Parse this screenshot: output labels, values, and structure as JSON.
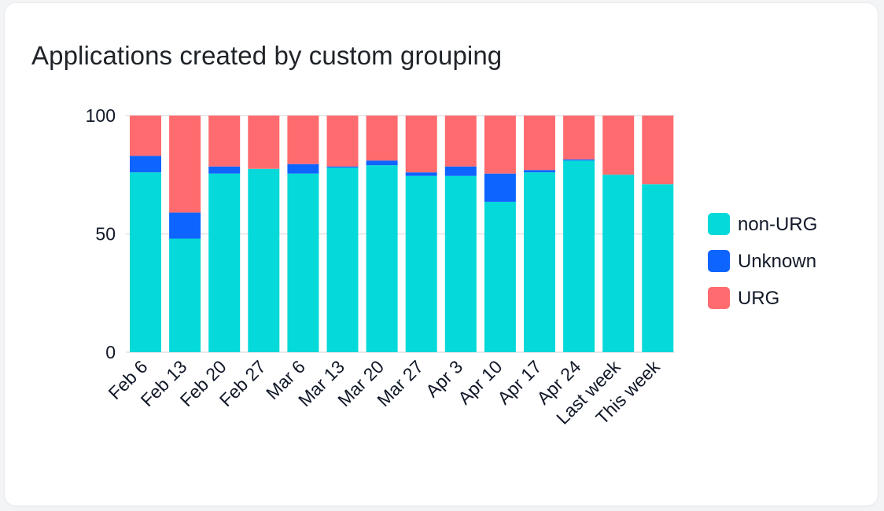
{
  "card": {
    "title": "Applications created by custom grouping"
  },
  "chart_data": {
    "type": "bar",
    "stacked": true,
    "title": "Applications created by custom grouping",
    "xlabel": "",
    "ylabel": "",
    "ylim": [
      0,
      100
    ],
    "yticks": [
      0,
      50,
      100
    ],
    "grid": true,
    "legend_position": "right",
    "categories": [
      "Feb 6",
      "Feb 13",
      "Feb 20",
      "Feb 27",
      "Mar 6",
      "Mar 13",
      "Mar 20",
      "Mar 27",
      "Apr 3",
      "Apr 10",
      "Apr 17",
      "Apr 24",
      "Last week",
      "This week"
    ],
    "series": [
      {
        "name": "non-URG",
        "color": "#05d9d9",
        "values": [
          76,
          48,
          75.5,
          77.5,
          75.5,
          78,
          79,
          74.5,
          74.5,
          63.5,
          76,
          81,
          75,
          71
        ]
      },
      {
        "name": "Unknown",
        "color": "#0d64ff",
        "values": [
          7,
          11,
          3,
          0,
          4,
          0.5,
          2,
          1.5,
          4,
          12,
          1,
          0.5,
          0,
          0
        ]
      },
      {
        "name": "URG",
        "color": "#ff6b6e",
        "values": [
          17,
          41,
          21.5,
          22.5,
          20.5,
          21.5,
          19,
          24,
          21.5,
          24.5,
          23,
          18.5,
          25,
          29
        ]
      }
    ]
  }
}
